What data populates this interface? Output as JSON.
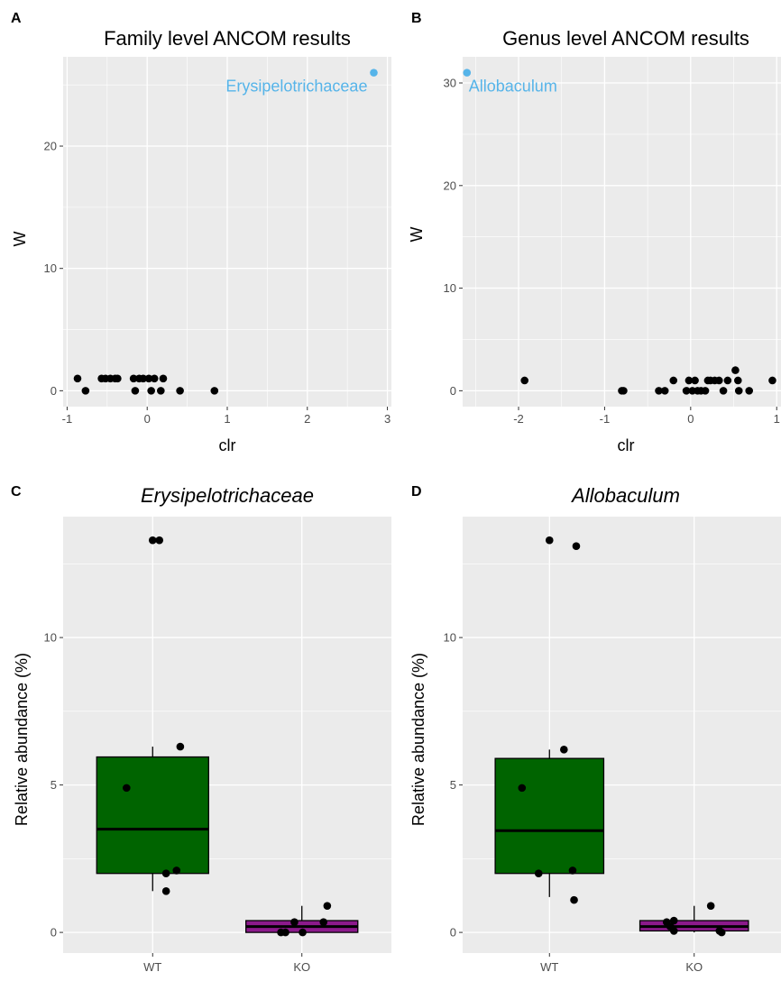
{
  "panels": [
    {
      "letter": "A",
      "title": "Family level ANCOM results"
    },
    {
      "letter": "B",
      "title": "Genus level ANCOM results"
    },
    {
      "letter": "C",
      "title": "Erysipelotrichaceae"
    },
    {
      "letter": "D",
      "title": "Allobaculum"
    }
  ],
  "colors": {
    "panel_background": "#ebebeb",
    "grid_major": "#ffffff",
    "point": "#000000",
    "highlight": "#56b4e9",
    "wt_box": "#006400",
    "ko_box": "#8b1a8b",
    "box_outline": "#000000"
  },
  "chart_data": [
    {
      "type": "scatter",
      "title": "Family level ANCOM results",
      "xlabel": "clr",
      "ylabel": "W",
      "xlim": [
        -1.05,
        3.05
      ],
      "ylim": [
        -1.3,
        27.3
      ],
      "x_ticks": [
        -1,
        0,
        1,
        2,
        3
      ],
      "x_tick_labels": [
        "-1",
        "0",
        "1",
        "2",
        "3"
      ],
      "y_ticks": [
        0,
        10,
        20
      ],
      "y_tick_labels": [
        "0",
        "10",
        "20"
      ],
      "grid": true,
      "points": [
        {
          "x": -0.87,
          "y": 1
        },
        {
          "x": -0.77,
          "y": 0
        },
        {
          "x": -0.57,
          "y": 1
        },
        {
          "x": -0.52,
          "y": 1
        },
        {
          "x": -0.46,
          "y": 1
        },
        {
          "x": -0.4,
          "y": 1
        },
        {
          "x": -0.37,
          "y": 1
        },
        {
          "x": -0.17,
          "y": 1
        },
        {
          "x": -0.15,
          "y": 0
        },
        {
          "x": -0.1,
          "y": 1
        },
        {
          "x": -0.05,
          "y": 1
        },
        {
          "x": 0.02,
          "y": 1
        },
        {
          "x": 0.05,
          "y": 0
        },
        {
          "x": 0.09,
          "y": 1
        },
        {
          "x": 0.17,
          "y": 0
        },
        {
          "x": 0.2,
          "y": 1
        },
        {
          "x": 0.41,
          "y": 0
        },
        {
          "x": 0.84,
          "y": 0
        },
        {
          "x": 2.83,
          "y": 26,
          "label": "Erysipelotrichaceae",
          "highlight": true
        }
      ]
    },
    {
      "type": "scatter",
      "title": "Genus level ANCOM results",
      "xlabel": "clr",
      "ylabel": "W",
      "xlim": [
        -2.65,
        1.05
      ],
      "ylim": [
        -1.55,
        32.55
      ],
      "x_ticks": [
        -2,
        -1,
        0,
        1
      ],
      "x_tick_labels": [
        "-2",
        "-1",
        "0",
        "1"
      ],
      "y_ticks": [
        0,
        10,
        20,
        30
      ],
      "y_tick_labels": [
        "0",
        "10",
        "20",
        "30"
      ],
      "grid": true,
      "points": [
        {
          "x": -1.93,
          "y": 1
        },
        {
          "x": -0.8,
          "y": 0
        },
        {
          "x": -0.78,
          "y": 0
        },
        {
          "x": -0.37,
          "y": 0
        },
        {
          "x": -0.3,
          "y": 0
        },
        {
          "x": -0.2,
          "y": 1
        },
        {
          "x": -0.05,
          "y": 0
        },
        {
          "x": -0.02,
          "y": 1
        },
        {
          "x": 0.02,
          "y": 0
        },
        {
          "x": 0.05,
          "y": 1
        },
        {
          "x": 0.08,
          "y": 0
        },
        {
          "x": 0.12,
          "y": 0
        },
        {
          "x": 0.17,
          "y": 0
        },
        {
          "x": 0.2,
          "y": 1
        },
        {
          "x": 0.23,
          "y": 1
        },
        {
          "x": 0.28,
          "y": 1
        },
        {
          "x": 0.33,
          "y": 1
        },
        {
          "x": 0.38,
          "y": 0
        },
        {
          "x": 0.43,
          "y": 1
        },
        {
          "x": 0.52,
          "y": 2
        },
        {
          "x": 0.55,
          "y": 1
        },
        {
          "x": 0.56,
          "y": 0
        },
        {
          "x": 0.68,
          "y": 0
        },
        {
          "x": 0.95,
          "y": 1
        },
        {
          "x": -2.6,
          "y": 31,
          "label": "Allobaculum",
          "highlight": true
        }
      ]
    },
    {
      "type": "box",
      "title": "Erysipelotrichaceae",
      "xlabel": "",
      "ylabel": "Relative abundance (%)",
      "ylim": [
        -0.7,
        14.1
      ],
      "y_ticks": [
        0,
        5,
        10
      ],
      "y_tick_labels": [
        "0",
        "5",
        "10"
      ],
      "grid": true,
      "categories": [
        "WT",
        "KO"
      ],
      "boxes": [
        {
          "category": "WT",
          "min": 1.4,
          "q1": 2.0,
          "median": 3.5,
          "q3": 5.95,
          "max": 6.3
        },
        {
          "category": "KO",
          "min": 0.0,
          "q1": 0.0,
          "median": 0.2,
          "q3": 0.4,
          "max": 0.9
        }
      ],
      "points": [
        {
          "category": "WT",
          "dx": 0.0,
          "y": 13.3
        },
        {
          "category": "WT",
          "dx": 0.09,
          "y": 13.3
        },
        {
          "category": "WT",
          "dx": -0.35,
          "y": 4.9
        },
        {
          "category": "WT",
          "dx": 0.37,
          "y": 6.3
        },
        {
          "category": "WT",
          "dx": 0.18,
          "y": 2.0
        },
        {
          "category": "WT",
          "dx": 0.32,
          "y": 2.1
        },
        {
          "category": "WT",
          "dx": 0.18,
          "y": 1.4
        },
        {
          "category": "KO",
          "dx": -0.28,
          "y": 0.0
        },
        {
          "category": "KO",
          "dx": -0.22,
          "y": 0.0
        },
        {
          "category": "KO",
          "dx": -0.1,
          "y": 0.35
        },
        {
          "category": "KO",
          "dx": 0.01,
          "y": 0.0
        },
        {
          "category": "KO",
          "dx": 0.29,
          "y": 0.35
        },
        {
          "category": "KO",
          "dx": 0.34,
          "y": 0.9
        }
      ]
    },
    {
      "type": "box",
      "title": "Allobaculum",
      "xlabel": "",
      "ylabel": "Relative abundance (%)",
      "ylim": [
        -0.7,
        14.1
      ],
      "y_ticks": [
        0,
        5,
        10
      ],
      "y_tick_labels": [
        "0",
        "5",
        "10"
      ],
      "grid": true,
      "categories": [
        "WT",
        "KO"
      ],
      "boxes": [
        {
          "category": "WT",
          "min": 1.2,
          "q1": 2.0,
          "median": 3.45,
          "q3": 5.9,
          "max": 6.2
        },
        {
          "category": "KO",
          "min": 0.0,
          "q1": 0.05,
          "median": 0.2,
          "q3": 0.4,
          "max": 0.9
        }
      ],
      "points": [
        {
          "category": "WT",
          "dx": 0.0,
          "y": 13.3
        },
        {
          "category": "WT",
          "dx": 0.37,
          "y": 13.1
        },
        {
          "category": "WT",
          "dx": -0.38,
          "y": 4.9
        },
        {
          "category": "WT",
          "dx": 0.2,
          "y": 6.2
        },
        {
          "category": "WT",
          "dx": -0.15,
          "y": 2.0
        },
        {
          "category": "WT",
          "dx": 0.32,
          "y": 2.1
        },
        {
          "category": "WT",
          "dx": 0.34,
          "y": 1.1
        },
        {
          "category": "KO",
          "dx": -0.38,
          "y": 0.35
        },
        {
          "category": "KO",
          "dx": -0.33,
          "y": 0.2
        },
        {
          "category": "KO",
          "dx": -0.28,
          "y": 0.05
        },
        {
          "category": "KO",
          "dx": -0.28,
          "y": 0.4
        },
        {
          "category": "KO",
          "dx": 0.23,
          "y": 0.9
        },
        {
          "category": "KO",
          "dx": 0.35,
          "y": 0.05
        },
        {
          "category": "KO",
          "dx": 0.38,
          "y": 0.0
        }
      ]
    }
  ]
}
